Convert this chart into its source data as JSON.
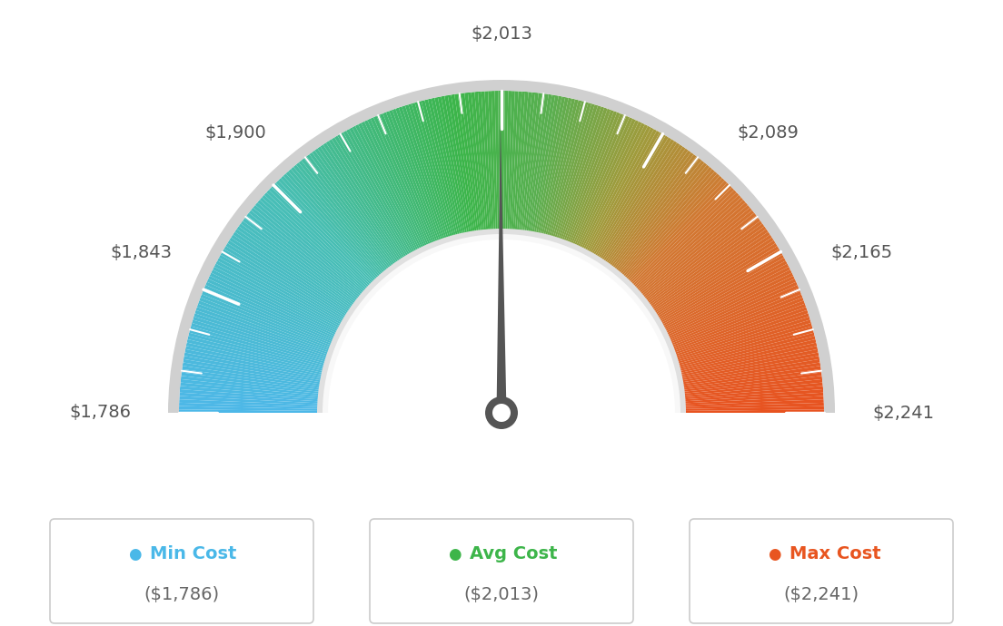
{
  "min_val": 1786,
  "avg_val": 2013,
  "max_val": 2241,
  "tick_labels_map": {
    "1786": "$1,786",
    "1843": "$1,843",
    "1900": "$1,900",
    "2013": "$2,013",
    "2089": "$2,089",
    "2165": "$2,165",
    "2241": "$2,241"
  },
  "major_ticks": [
    1786,
    1843,
    1900,
    2013,
    2089,
    2165,
    2241
  ],
  "legend": [
    {
      "label": "Min Cost",
      "value": "($1,786)",
      "color": "#4ab8e8"
    },
    {
      "label": "Avg Cost",
      "value": "($2,013)",
      "color": "#3db54a"
    },
    {
      "label": "Max Cost",
      "value": "($2,241)",
      "color": "#e85520"
    }
  ],
  "background_color": "#ffffff",
  "needle_color": "#555555",
  "label_color": "#555555",
  "outer_border_color": "#cccccc",
  "inner_arc_color": "#e0e0e0",
  "inner_arc_white": "#f5f5f5",
  "color_stops": [
    [
      0.0,
      [
        77,
        184,
        232
      ]
    ],
    [
      0.25,
      [
        72,
        190,
        180
      ]
    ],
    [
      0.45,
      [
        60,
        181,
        74
      ]
    ],
    [
      0.55,
      [
        90,
        175,
        80
      ]
    ],
    [
      0.65,
      [
        160,
        155,
        60
      ]
    ],
    [
      0.75,
      [
        210,
        120,
        50
      ]
    ],
    [
      1.0,
      [
        232,
        82,
        32
      ]
    ]
  ]
}
